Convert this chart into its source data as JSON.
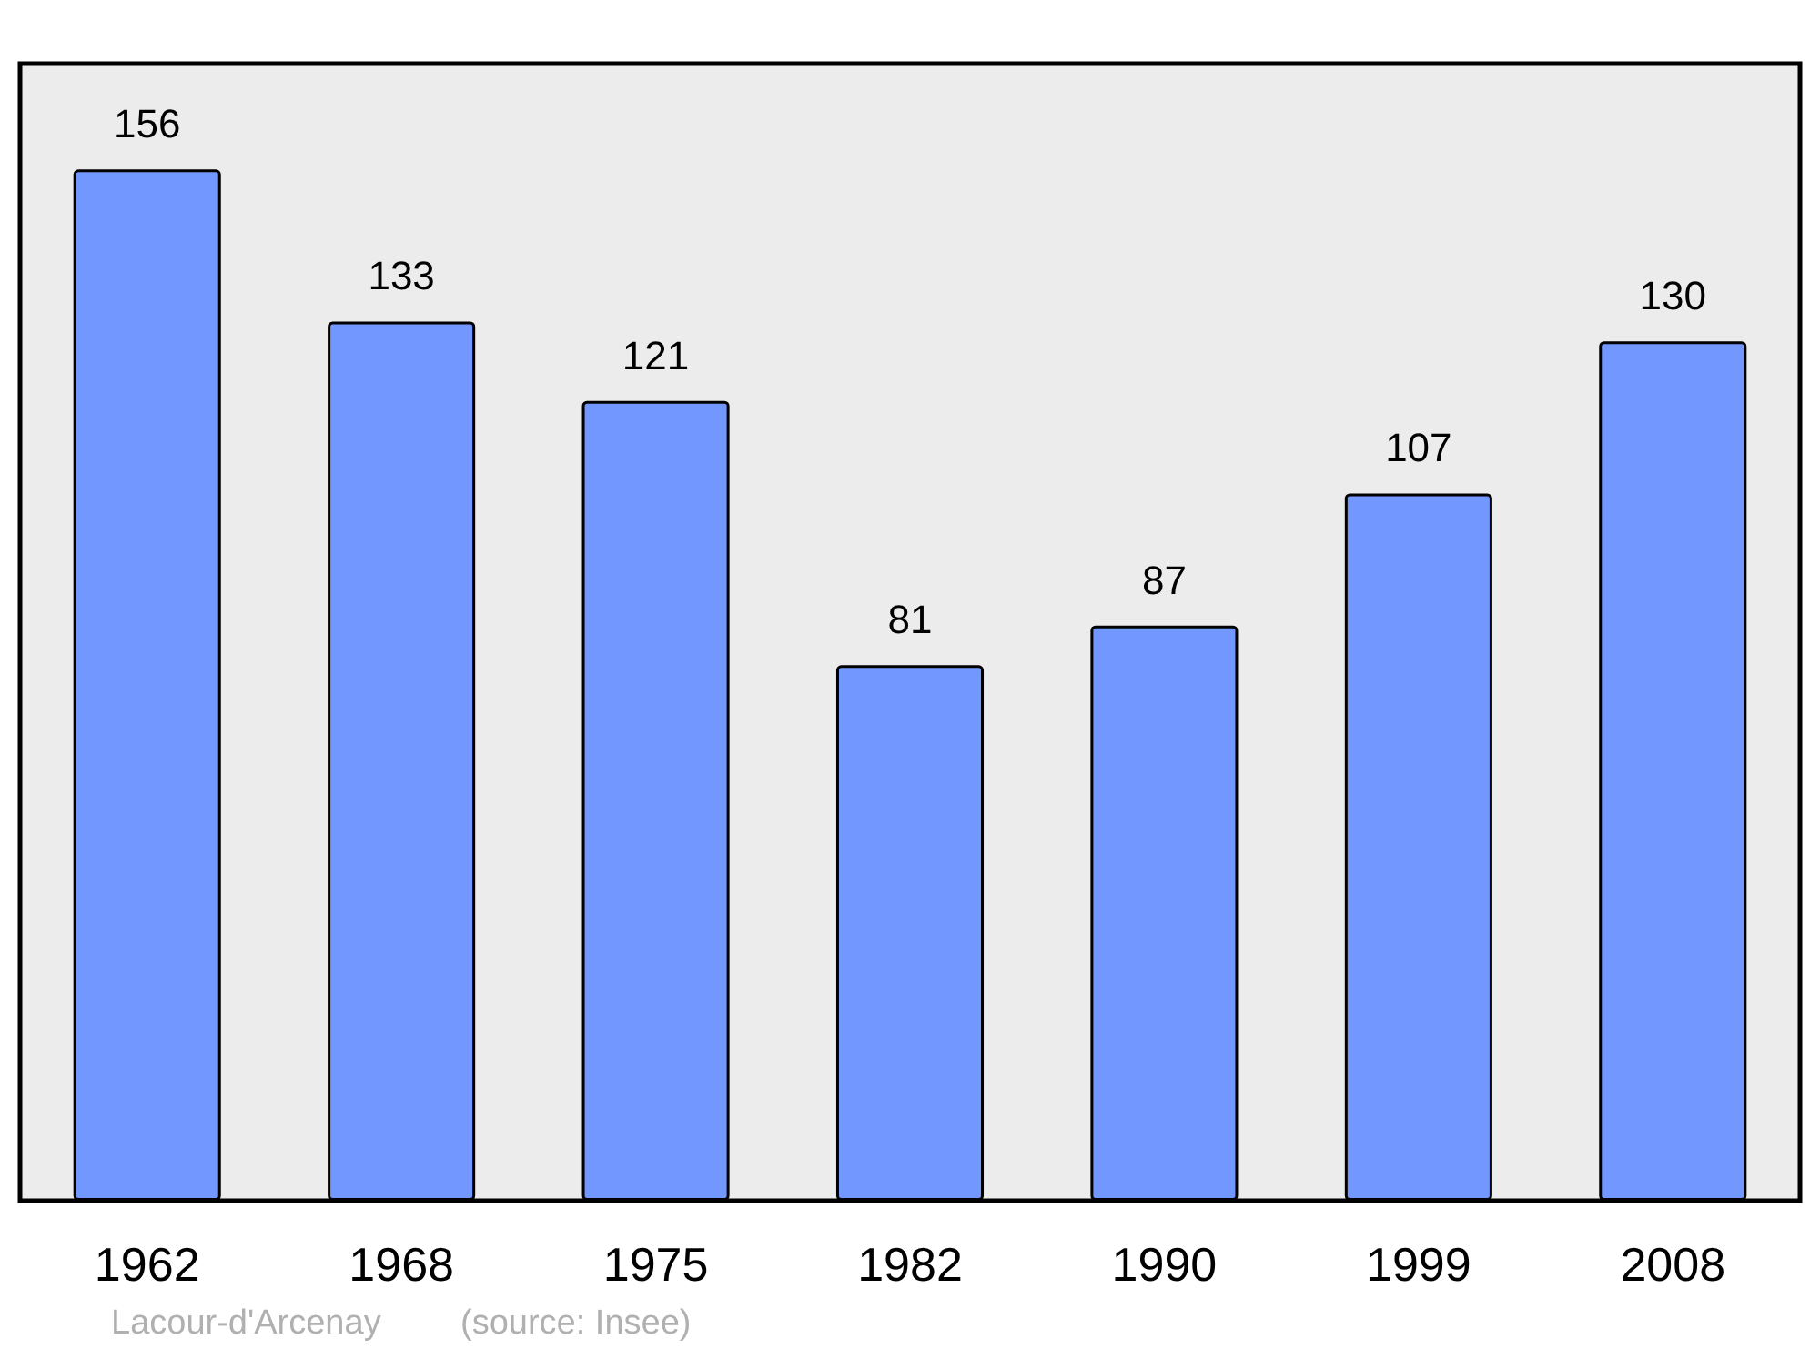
{
  "chart_data": {
    "type": "bar",
    "categories": [
      "1962",
      "1968",
      "1975",
      "1982",
      "1990",
      "1999",
      "2008"
    ],
    "values": [
      156,
      133,
      121,
      81,
      87,
      107,
      130
    ],
    "color": "#7298ff",
    "ylim": [
      0,
      172
    ],
    "data_labels": true,
    "tick_labels": "x",
    "annotations": [
      "Lacour-d'Arcenay",
      "(source: Insee)"
    ]
  }
}
